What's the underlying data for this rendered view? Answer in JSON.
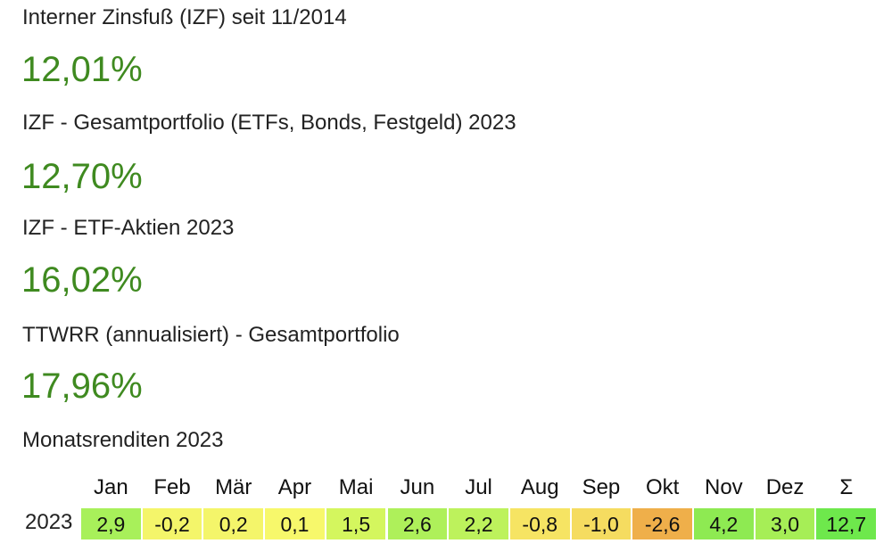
{
  "metrics": [
    {
      "label": "Interner Zinsfuß (IZF) seit 11/2014",
      "value": "12,01%"
    },
    {
      "label": "IZF - Gesamtportfolio (ETFs, Bonds, Festgeld) 2023",
      "value": "12,70%"
    },
    {
      "label": "IZF - ETF-Aktien 2023",
      "value": "16,02%"
    },
    {
      "label": "TTWRR (annualisiert) - Gesamtportfolio",
      "value": "17,96%"
    }
  ],
  "table": {
    "title": "Monatsrenditen 2023",
    "header": [
      "Jan",
      "Feb",
      "Mär",
      "Apr",
      "Mai",
      "Jun",
      "Jul",
      "Aug",
      "Sep",
      "Okt",
      "Nov",
      "Dez",
      "Σ"
    ],
    "row_label": "2023",
    "cells": [
      "2,9",
      "-0,2",
      "0,2",
      "0,1",
      "1,5",
      "2,6",
      "2,2",
      "-0,8",
      "-1,0",
      "-2,6",
      "4,2",
      "3,0",
      "12,7"
    ],
    "colors": [
      "#a8f05a",
      "#f4f56a",
      "#f4f56a",
      "#f7f86b",
      "#d4f65e",
      "#aef05a",
      "#bdf25c",
      "#f6e463",
      "#f5dc60",
      "#efaf4a",
      "#8eea52",
      "#a6ee56",
      "#6ee84c"
    ]
  }
}
